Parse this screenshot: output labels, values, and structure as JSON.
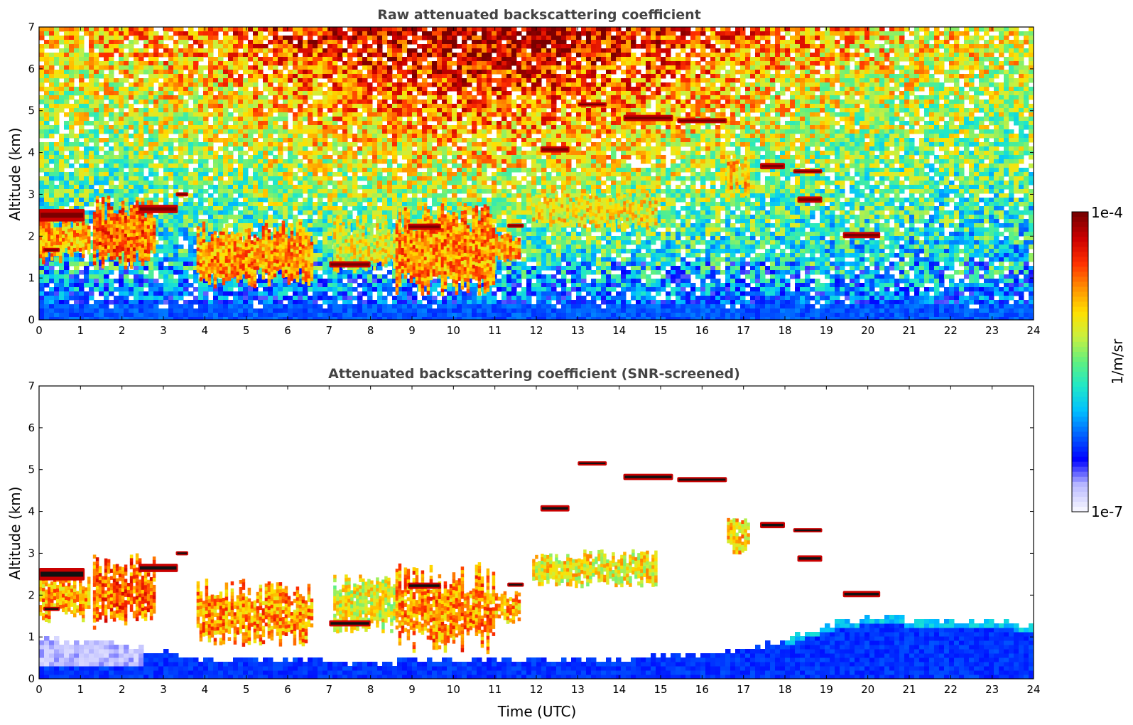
{
  "colors": {
    "colormap": [
      "#f4f4ff",
      "#b8b8ff",
      "#0000ff",
      "#0060ff",
      "#00c0ff",
      "#20e8c8",
      "#60f080",
      "#c8f040",
      "#ffe000",
      "#ff9000",
      "#ff3000",
      "#cc0000",
      "#7a0000"
    ],
    "cloud_core": "#111111",
    "title": "#444444"
  },
  "chart_data": [
    {
      "type": "heatmap",
      "title": "Raw attenuated backscattering coefficient",
      "xlabel": "",
      "ylabel": "Altitude (km)",
      "xlim": [
        0,
        24
      ],
      "ylim": [
        0,
        7
      ],
      "x_ticks": [
        "0",
        "1",
        "2",
        "3",
        "4",
        "5",
        "6",
        "7",
        "8",
        "9",
        "10",
        "11",
        "12",
        "13",
        "14",
        "15",
        "16",
        "17",
        "18",
        "19",
        "20",
        "21",
        "22",
        "23",
        "24"
      ],
      "y_ticks": [
        "0",
        "1",
        "2",
        "3",
        "4",
        "5",
        "6",
        "7"
      ],
      "screened": false,
      "cloud_layers": [
        {
          "t0": 0.0,
          "t1": 1.1,
          "h0": 2.35,
          "h1": 2.65
        },
        {
          "t0": 0.1,
          "t1": 0.5,
          "h0": 1.62,
          "h1": 1.72
        },
        {
          "t0": 2.4,
          "t1": 3.35,
          "h0": 2.55,
          "h1": 2.75
        },
        {
          "t0": 3.3,
          "t1": 3.6,
          "h0": 2.95,
          "h1": 3.05
        },
        {
          "t0": 7.0,
          "t1": 8.0,
          "h0": 1.25,
          "h1": 1.4
        },
        {
          "t0": 8.9,
          "t1": 9.7,
          "h0": 2.15,
          "h1": 2.3
        },
        {
          "t0": 11.3,
          "t1": 11.7,
          "h0": 2.2,
          "h1": 2.3
        },
        {
          "t0": 12.1,
          "t1": 12.8,
          "h0": 4.0,
          "h1": 4.15
        },
        {
          "t0": 13.0,
          "t1": 13.7,
          "h0": 5.1,
          "h1": 5.2
        },
        {
          "t0": 14.1,
          "t1": 15.3,
          "h0": 4.75,
          "h1": 4.9
        },
        {
          "t0": 15.4,
          "t1": 16.6,
          "h0": 4.7,
          "h1": 4.82
        },
        {
          "t0": 17.4,
          "t1": 18.0,
          "h0": 3.6,
          "h1": 3.75
        },
        {
          "t0": 18.2,
          "t1": 18.9,
          "h0": 3.5,
          "h1": 3.6
        },
        {
          "t0": 18.3,
          "t1": 18.9,
          "h0": 2.8,
          "h1": 2.95
        },
        {
          "t0": 19.4,
          "t1": 20.3,
          "h0": 1.95,
          "h1": 2.1
        }
      ],
      "aerosol_regions": [
        {
          "t0": 0.0,
          "t1": 1.2,
          "h0": 1.4,
          "h1": 2.6,
          "level": 0.72
        },
        {
          "t0": 1.3,
          "t1": 2.8,
          "h0": 1.2,
          "h1": 3.0,
          "level": 0.78
        },
        {
          "t0": 3.8,
          "t1": 6.6,
          "h0": 0.8,
          "h1": 2.4,
          "level": 0.74
        },
        {
          "t0": 7.1,
          "t1": 8.6,
          "h0": 1.1,
          "h1": 2.5,
          "level": 0.62
        },
        {
          "t0": 8.6,
          "t1": 11.0,
          "h0": 0.6,
          "h1": 2.8,
          "level": 0.75
        },
        {
          "t0": 11.0,
          "t1": 11.6,
          "h0": 1.4,
          "h1": 2.1,
          "level": 0.72
        },
        {
          "t0": 11.9,
          "t1": 14.9,
          "h0": 2.2,
          "h1": 3.1,
          "level": 0.64
        },
        {
          "t0": 16.6,
          "t1": 17.1,
          "h0": 3.0,
          "h1": 4.0,
          "level": 0.68
        }
      ]
    },
    {
      "type": "heatmap",
      "title": "Attenuated backscattering coefficient (SNR-screened)",
      "xlabel": "Time (UTC)",
      "ylabel": "Altitude (km)",
      "xlim": [
        0,
        24
      ],
      "ylim": [
        0,
        7
      ],
      "x_ticks": [
        "0",
        "1",
        "2",
        "3",
        "4",
        "5",
        "6",
        "7",
        "8",
        "9",
        "10",
        "11",
        "12",
        "13",
        "14",
        "15",
        "16",
        "17",
        "18",
        "19",
        "20",
        "21",
        "22",
        "23",
        "24"
      ],
      "y_ticks": [
        "0",
        "1",
        "2",
        "3",
        "4",
        "5",
        "6",
        "7"
      ],
      "screened": true,
      "cloud_layers": [
        {
          "t0": 0.0,
          "t1": 1.1,
          "h0": 2.35,
          "h1": 2.65
        },
        {
          "t0": 0.1,
          "t1": 0.5,
          "h0": 1.62,
          "h1": 1.72
        },
        {
          "t0": 2.4,
          "t1": 3.35,
          "h0": 2.55,
          "h1": 2.75
        },
        {
          "t0": 3.3,
          "t1": 3.6,
          "h0": 2.95,
          "h1": 3.05
        },
        {
          "t0": 7.0,
          "t1": 8.0,
          "h0": 1.25,
          "h1": 1.4
        },
        {
          "t0": 8.9,
          "t1": 9.7,
          "h0": 2.15,
          "h1": 2.3
        },
        {
          "t0": 11.3,
          "t1": 11.7,
          "h0": 2.2,
          "h1": 2.3
        },
        {
          "t0": 12.1,
          "t1": 12.8,
          "h0": 4.0,
          "h1": 4.15
        },
        {
          "t0": 13.0,
          "t1": 13.7,
          "h0": 5.1,
          "h1": 5.2
        },
        {
          "t0": 14.1,
          "t1": 15.3,
          "h0": 4.75,
          "h1": 4.9
        },
        {
          "t0": 15.4,
          "t1": 16.6,
          "h0": 4.7,
          "h1": 4.82
        },
        {
          "t0": 17.4,
          "t1": 18.0,
          "h0": 3.6,
          "h1": 3.75
        },
        {
          "t0": 18.2,
          "t1": 18.9,
          "h0": 3.5,
          "h1": 3.6
        },
        {
          "t0": 18.3,
          "t1": 18.9,
          "h0": 2.8,
          "h1": 2.95
        },
        {
          "t0": 19.4,
          "t1": 20.3,
          "h0": 1.95,
          "h1": 2.1
        }
      ],
      "aerosol_regions": [
        {
          "t0": 0.0,
          "t1": 1.2,
          "h0": 1.4,
          "h1": 2.6,
          "level": 0.72
        },
        {
          "t0": 1.3,
          "t1": 2.8,
          "h0": 1.2,
          "h1": 3.0,
          "level": 0.78
        },
        {
          "t0": 3.8,
          "t1": 6.6,
          "h0": 0.8,
          "h1": 2.4,
          "level": 0.74
        },
        {
          "t0": 7.1,
          "t1": 8.6,
          "h0": 1.1,
          "h1": 2.5,
          "level": 0.62
        },
        {
          "t0": 8.6,
          "t1": 11.0,
          "h0": 0.6,
          "h1": 2.8,
          "level": 0.75
        },
        {
          "t0": 11.0,
          "t1": 11.6,
          "h0": 1.4,
          "h1": 2.1,
          "level": 0.72
        },
        {
          "t0": 11.9,
          "t1": 14.9,
          "h0": 2.2,
          "h1": 3.1,
          "level": 0.64
        },
        {
          "t0": 16.6,
          "t1": 17.1,
          "h0": 3.0,
          "h1": 4.0,
          "level": 0.68
        }
      ],
      "boundary_layer_top": [
        {
          "t": 0,
          "h": 0.95
        },
        {
          "t": 2,
          "h": 0.8
        },
        {
          "t": 4,
          "h": 0.45
        },
        {
          "t": 8,
          "h": 0.4
        },
        {
          "t": 12,
          "h": 0.45
        },
        {
          "t": 16,
          "h": 0.55
        },
        {
          "t": 17,
          "h": 0.65
        },
        {
          "t": 18,
          "h": 0.95
        },
        {
          "t": 19,
          "h": 1.3
        },
        {
          "t": 20,
          "h": 1.45
        },
        {
          "t": 22,
          "h": 1.4
        },
        {
          "t": 24,
          "h": 1.3
        }
      ]
    }
  ],
  "colorbar": {
    "max_label": "1e-4",
    "min_label": "1e-7",
    "unit_label": "1/m/sr"
  }
}
